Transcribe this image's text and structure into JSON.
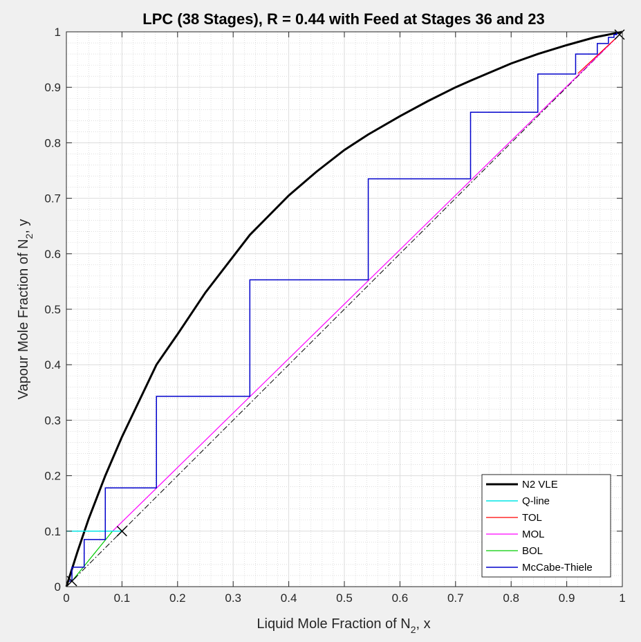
{
  "chart_data": {
    "type": "line",
    "title": "LPC (38 Stages), R = 0.44 with Feed at Stages 36 and 23",
    "xlabel": {
      "pre": "Liquid Mole Fraction of N",
      "sub": "2",
      "post": ", x"
    },
    "ylabel": {
      "pre": "Vapour Mole Fraction of N",
      "sub": "2",
      "post": ", y"
    },
    "xlim": [
      0,
      1
    ],
    "ylim": [
      0,
      1
    ],
    "xticks": [
      "0",
      "0.1",
      "0.2",
      "0.3",
      "0.4",
      "0.5",
      "0.6",
      "0.7",
      "0.8",
      "0.9",
      "1"
    ],
    "yticks": [
      "0",
      "0.1",
      "0.2",
      "0.3",
      "0.4",
      "0.5",
      "0.6",
      "0.7",
      "0.8",
      "0.9",
      "1"
    ],
    "grid": true,
    "minor_grid": true,
    "legend_position": "bottom-right",
    "series": [
      {
        "name": "N2 VLE",
        "color": "#000000",
        "width": 3,
        "x": [
          0,
          0.02,
          0.04,
          0.07,
          0.1,
          0.162,
          0.2,
          0.25,
          0.3,
          0.33,
          0.4,
          0.45,
          0.5,
          0.543,
          0.6,
          0.65,
          0.7,
          0.727,
          0.8,
          0.848,
          0.9,
          0.95,
          1.0
        ],
        "y": [
          0,
          0.063,
          0.122,
          0.2,
          0.27,
          0.4,
          0.455,
          0.53,
          0.595,
          0.634,
          0.705,
          0.748,
          0.787,
          0.815,
          0.848,
          0.875,
          0.9,
          0.912,
          0.943,
          0.96,
          0.976,
          0.99,
          1.0
        ]
      },
      {
        "name": "Q-line",
        "color": "#00e5e5",
        "width": 1.5,
        "x": [
          0,
          0.1
        ],
        "y": [
          0.1,
          0.1
        ]
      },
      {
        "name": "TOL",
        "color": "#ff0000",
        "width": 1.2,
        "x": [
          0.92,
          0.99
        ],
        "y": [
          0.925,
          0.99
        ]
      },
      {
        "name": "MOL",
        "color": "#ff00ff",
        "width": 1.2,
        "x": [
          0.083,
          0.99
        ],
        "y": [
          0.1,
          0.99
        ]
      },
      {
        "name": "BOL",
        "color": "#00cc00",
        "width": 1.2,
        "x": [
          0.01,
          0.083
        ],
        "y": [
          0.01,
          0.1
        ]
      },
      {
        "name": "McCabe-Thiele",
        "color": "#0000cc",
        "width": 1.5,
        "x": [
          0.005,
          0.01,
          0.01,
          0.032,
          0.032,
          0.07,
          0.07,
          0.162,
          0.162,
          0.33,
          0.33,
          0.543,
          0.543,
          0.727,
          0.727,
          0.848,
          0.848,
          0.916,
          0.916,
          0.955,
          0.955,
          0.975,
          0.975,
          0.985,
          0.985,
          0.99,
          0.99
        ],
        "y": [
          0.01,
          0.01,
          0.035,
          0.035,
          0.085,
          0.085,
          0.178,
          0.178,
          0.343,
          0.343,
          0.553,
          0.553,
          0.735,
          0.735,
          0.855,
          0.855,
          0.924,
          0.924,
          0.96,
          0.96,
          0.979,
          0.979,
          0.99,
          0.99,
          0.995,
          0.995,
          1.0
        ]
      }
    ],
    "reference_line": {
      "x": [
        0,
        1
      ],
      "y": [
        0,
        1
      ],
      "style": "dash-dot",
      "color": "#000000"
    },
    "markers": [
      {
        "x": 0.995,
        "y": 0.995,
        "symbol": "x"
      },
      {
        "x": 0.1,
        "y": 0.1,
        "symbol": "x"
      },
      {
        "x": 0.01,
        "y": 0.01,
        "symbol": "x"
      }
    ]
  }
}
